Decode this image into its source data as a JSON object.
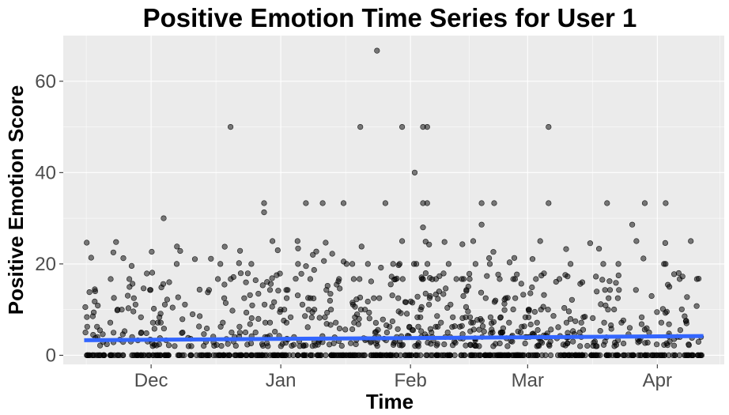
{
  "chart_data": {
    "type": "scatter",
    "title": "Positive Emotion Time Series for User 1",
    "xlabel": "Time",
    "ylabel": "Positive Emotion Score",
    "x_start": "2018-11-15",
    "x_end": "2019-04-12",
    "xlim": [
      "2018-11-10",
      "2019-04-17"
    ],
    "ylim": [
      -2,
      70
    ],
    "x_ticks": [
      {
        "label": "Dec",
        "date": "2018-12-01"
      },
      {
        "label": "Jan",
        "date": "2019-01-01"
      },
      {
        "label": "Feb",
        "date": "2019-02-01"
      },
      {
        "label": "Mar",
        "date": "2019-03-01"
      },
      {
        "label": "Apr",
        "date": "2019-04-01"
      }
    ],
    "y_ticks": [
      0,
      20,
      40,
      60
    ],
    "grid": true,
    "legend": "none",
    "point_color": "#000000",
    "point_alpha": 0.5,
    "trend_color": "#3366FF",
    "trend_line": {
      "start": 3.3,
      "end": 4.2
    },
    "notable_points": [
      {
        "x": "2019-01-24",
        "y": 66.7
      },
      {
        "x": "2018-12-20",
        "y": 50
      },
      {
        "x": "2019-01-20",
        "y": 50
      },
      {
        "x": "2019-01-30",
        "y": 50
      },
      {
        "x": "2019-02-04",
        "y": 50
      },
      {
        "x": "2019-02-05",
        "y": 50
      },
      {
        "x": "2019-03-06",
        "y": 50
      },
      {
        "x": "2019-02-02",
        "y": 40
      },
      {
        "x": "2018-12-04",
        "y": 30
      },
      {
        "x": "2018-12-28",
        "y": 33.3
      },
      {
        "x": "2019-01-07",
        "y": 33.3
      },
      {
        "x": "2019-01-11",
        "y": 33.3
      },
      {
        "x": "2019-01-16",
        "y": 33.3
      },
      {
        "x": "2019-01-26",
        "y": 33.3
      },
      {
        "x": "2019-02-04",
        "y": 33.3
      },
      {
        "x": "2019-02-05",
        "y": 33.3
      },
      {
        "x": "2019-02-18",
        "y": 33.3
      },
      {
        "x": "2019-02-21",
        "y": 33.3
      },
      {
        "x": "2019-03-06",
        "y": 33.3
      },
      {
        "x": "2019-03-20",
        "y": 33.3
      },
      {
        "x": "2019-03-29",
        "y": 33.3
      },
      {
        "x": "2019-04-03",
        "y": 33.3
      },
      {
        "x": "2018-12-28",
        "y": 31.3
      },
      {
        "x": "2019-02-04",
        "y": 28
      },
      {
        "x": "2019-03-26",
        "y": 28.6
      },
      {
        "x": "2019-02-18",
        "y": 28.6
      },
      {
        "x": "2019-04-09",
        "y": 25
      },
      {
        "x": "2019-02-16",
        "y": 25
      },
      {
        "x": "2019-03-04",
        "y": 25
      },
      {
        "x": "2018-12-30",
        "y": 25
      },
      {
        "x": "2019-01-05",
        "y": 25
      },
      {
        "x": "2019-01-30",
        "y": 25
      },
      {
        "x": "2019-03-27",
        "y": 25
      }
    ]
  }
}
